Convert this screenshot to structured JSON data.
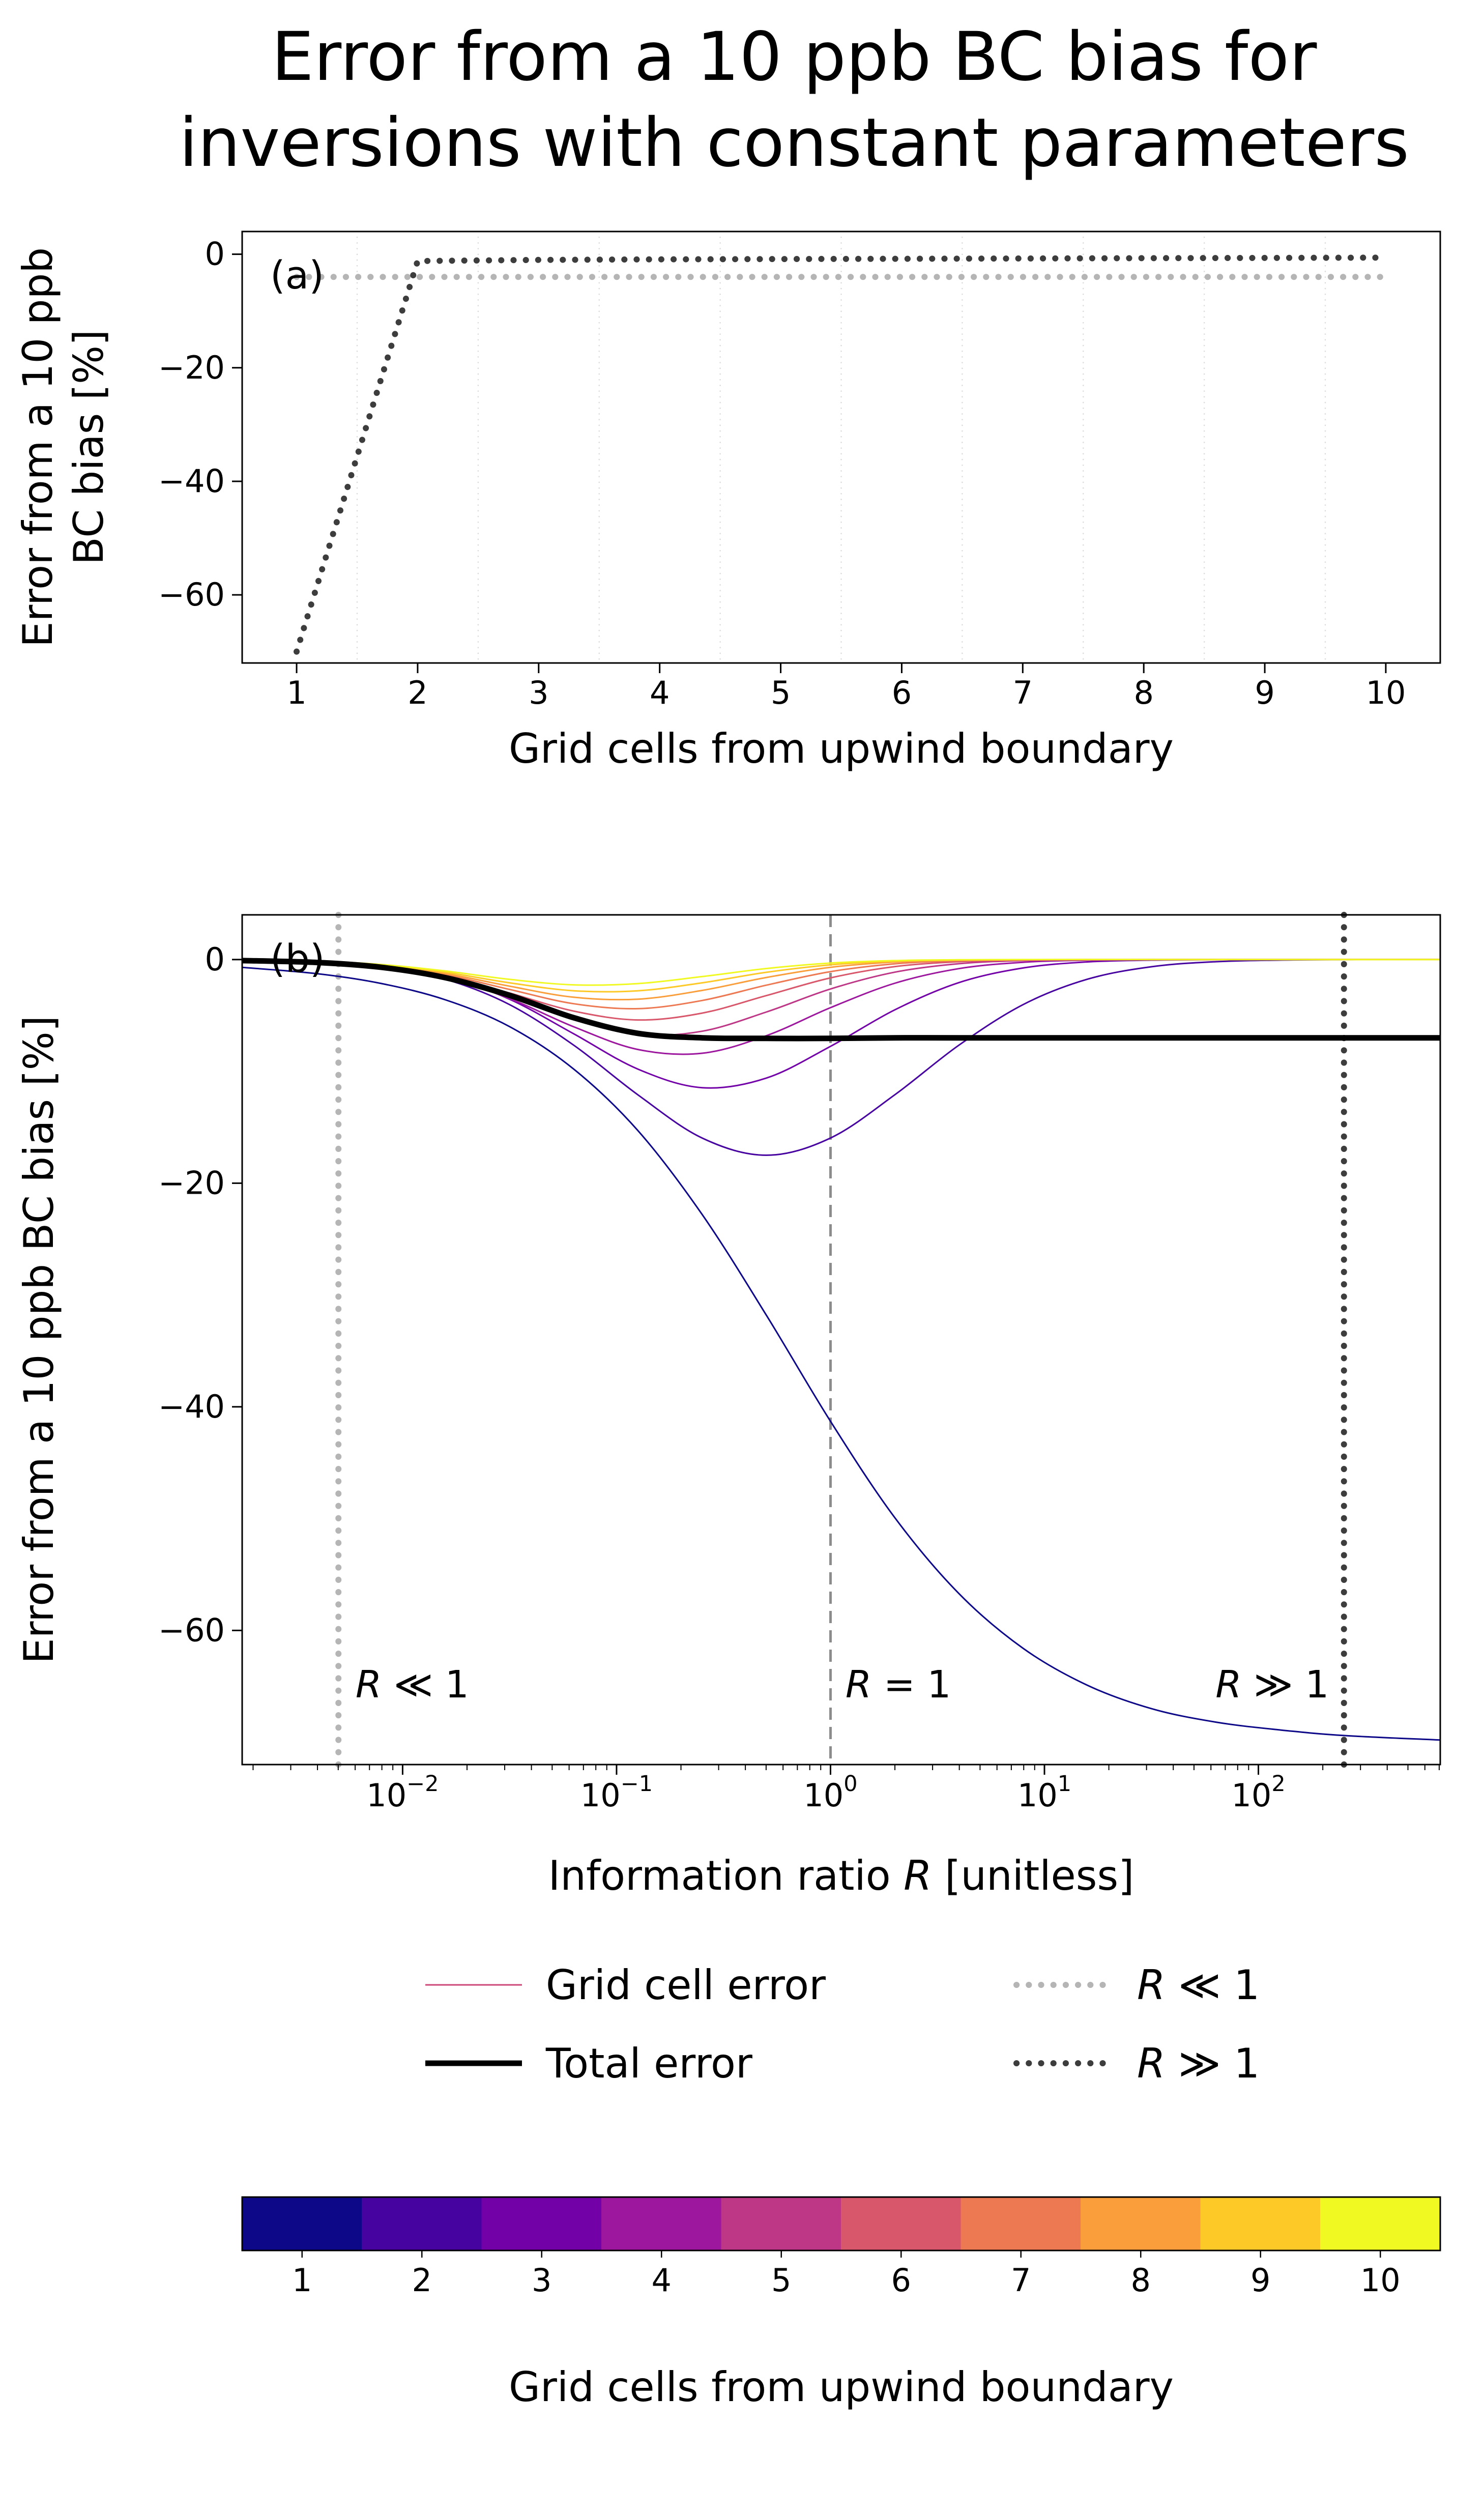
{
  "title": {
    "line1": "Error from a 10 ppb BC bias for",
    "line2": "inversions with constant parameters"
  },
  "panels": {
    "a": {
      "label": "(a)",
      "xlabel": "Grid cells from upwind boundary",
      "ylabel_line1": "Error from a 10 ppb",
      "ylabel_line2": "BC bias [%]"
    },
    "b": {
      "label": "(b)",
      "xlabel_pre": "Information ratio ",
      "xlabel_italic": "R",
      "xlabel_post": " [unitless]",
      "ylabel": "Error from a 10 ppb BC bias [%]"
    }
  },
  "legend": {
    "columns": [
      [
        {
          "label": "Grid cell error",
          "kind": "grid-cell",
          "color": "#cc4778",
          "style": "solid"
        },
        {
          "label": "Total error",
          "kind": "total",
          "color": "#000000",
          "style": "solid"
        }
      ],
      [
        {
          "label": "R ≪ 1",
          "kind": "limit",
          "color": "#b5b5b5",
          "style": "dotted"
        },
        {
          "label": "R ≫ 1",
          "kind": "limit",
          "color": "#3d3d3d",
          "style": "dotted"
        }
      ]
    ]
  },
  "colorbar": {
    "label": "Grid cells from upwind boundary",
    "tick_labels": [
      "1",
      "2",
      "3",
      "4",
      "5",
      "6",
      "7",
      "8",
      "9",
      "10"
    ],
    "colors": [
      "#0d0887",
      "#46039f",
      "#7201a8",
      "#9c179e",
      "#bd3786",
      "#d8576b",
      "#ed7953",
      "#fa9e3b",
      "#fdc926",
      "#f0f921"
    ]
  },
  "chart_data": [
    {
      "id": "panel_a",
      "type": "line",
      "xlabel": "Grid cells from upwind boundary",
      "ylabel": "Error from a 10 ppb BC bias [%]",
      "xlim": [
        0.55,
        10.45
      ],
      "ylim": [
        -72,
        4
      ],
      "xticks": [
        1,
        2,
        3,
        4,
        5,
        6,
        7,
        8,
        9,
        10
      ],
      "xtick_labels": [
        "1",
        "2",
        "3",
        "4",
        "5",
        "6",
        "7",
        "8",
        "9",
        "10"
      ],
      "yticks": [
        0,
        -20,
        -40,
        -60
      ],
      "ytick_labels": [
        "0",
        "−20",
        "−40",
        "−60"
      ],
      "minor_grid_x": [
        1.5,
        2.5,
        3.5,
        4.5,
        5.5,
        6.5,
        7.5,
        8.5,
        9.5
      ],
      "x": [
        1,
        2,
        3,
        4,
        5,
        6,
        7,
        8,
        9,
        10
      ],
      "series": [
        {
          "name": "R ≪ 1",
          "kind": "limit",
          "color": "#b5b5b5",
          "style": "dotted",
          "values": [
            -4,
            -4,
            -4,
            -4,
            -4,
            -4,
            -4,
            -4,
            -4,
            -4
          ]
        },
        {
          "name": "R ≫ 1",
          "kind": "limit",
          "color": "#3d3d3d",
          "style": "dotted",
          "values": [
            -70,
            -1.2,
            -1.0,
            -0.9,
            -0.85,
            -0.8,
            -0.75,
            -0.7,
            -0.65,
            -0.6
          ]
        }
      ]
    },
    {
      "id": "panel_b",
      "type": "line",
      "xscale": "log",
      "xlabel": "Information ratio R [unitless]",
      "ylabel": "Error from a 10 ppb BC bias [%]",
      "xlim_log10": [
        -2.75,
        2.85
      ],
      "ylim": [
        -72,
        4
      ],
      "xticks_log10": [
        -2,
        -1,
        0,
        1,
        2
      ],
      "xtick_exponents": [
        "−2",
        "−1",
        "0",
        "1",
        "2"
      ],
      "yticks": [
        0,
        -20,
        -40,
        -60
      ],
      "ytick_labels": [
        "0",
        "−20",
        "−40",
        "−60"
      ],
      "x_log10": [
        -2.75,
        -2.4,
        -2.1,
        -1.8,
        -1.5,
        -1.2,
        -0.9,
        -0.6,
        -0.3,
        0,
        0.3,
        0.6,
        0.9,
        1.2,
        1.5,
        1.8,
        2.1,
        2.4,
        2.85
      ],
      "series": [
        {
          "name": "1",
          "kind": "grid-cell",
          "color": "#0d0887",
          "style": "solid",
          "values": [
            -0.7,
            -1.26,
            -2.14,
            -3.6,
            -6.0,
            -9.8,
            -15.3,
            -22.8,
            -31.8,
            -41.3,
            -49.9,
            -56.7,
            -61.6,
            -64.9,
            -67.0,
            -68.2,
            -68.9,
            -69.4,
            -69.8
          ]
        },
        {
          "name": "2",
          "kind": "grid-cell",
          "color": "#46039f",
          "style": "solid",
          "values": [
            -0.04,
            -0.19,
            -0.64,
            -1.76,
            -4.03,
            -7.66,
            -12.1,
            -15.96,
            -17.5,
            -15.96,
            -12.1,
            -7.66,
            -4.03,
            -1.76,
            -0.64,
            -0.19,
            -0.05,
            -0.01,
            0
          ]
        },
        {
          "name": "3",
          "kind": "grid-cell",
          "color": "#7201a8",
          "style": "solid",
          "values": [
            -0.03,
            -0.13,
            -0.5,
            -1.5,
            -3.55,
            -6.64,
            -9.8,
            -11.46,
            -10.6,
            -7.76,
            -4.5,
            -2.06,
            -0.75,
            -0.21,
            -0.05,
            -0.01,
            0,
            0,
            0
          ]
        },
        {
          "name": "4",
          "kind": "grid-cell",
          "color": "#9c179e",
          "style": "solid",
          "values": [
            -0.03,
            -0.15,
            -0.56,
            -1.58,
            -3.49,
            -6.01,
            -8.04,
            -8.38,
            -6.81,
            -4.3,
            -2.12,
            -0.81,
            -0.24,
            -0.06,
            -0.01,
            0,
            0,
            0,
            0
          ]
        },
        {
          "name": "5",
          "kind": "grid-cell",
          "color": "#bd3786",
          "style": "solid",
          "values": [
            -0.03,
            -0.15,
            -0.55,
            -1.54,
            -3.28,
            -5.36,
            -6.7,
            -6.41,
            -4.69,
            -2.63,
            -1.13,
            -0.37,
            -0.09,
            -0.02,
            0,
            0,
            0,
            0,
            0
          ]
        },
        {
          "name": "6",
          "kind": "grid-cell",
          "color": "#d8576b",
          "style": "solid",
          "values": [
            -0.03,
            -0.15,
            -0.55,
            -1.47,
            -2.99,
            -4.61,
            -5.4,
            -4.79,
            -3.22,
            -1.64,
            -0.63,
            -0.19,
            -0.04,
            -0.01,
            0,
            0,
            0,
            0,
            0
          ]
        },
        {
          "name": "7",
          "kind": "grid-cell",
          "color": "#ed7953",
          "style": "solid",
          "values": [
            -0.03,
            -0.15,
            -0.51,
            -1.35,
            -2.67,
            -3.95,
            -4.39,
            -3.66,
            -2.29,
            -1.08,
            -0.38,
            -0.1,
            -0.02,
            0,
            0,
            0,
            0,
            0,
            0
          ]
        },
        {
          "name": "8",
          "kind": "grid-cell",
          "color": "#fa9e3b",
          "style": "solid",
          "values": [
            -0.03,
            -0.14,
            -0.49,
            -1.25,
            -2.38,
            -3.37,
            -3.54,
            -2.76,
            -1.6,
            -0.69,
            -0.22,
            -0.05,
            -0.01,
            0,
            0,
            0,
            0,
            0,
            0
          ]
        },
        {
          "name": "9",
          "kind": "grid-cell",
          "color": "#fdc926",
          "style": "solid",
          "values": [
            -0.03,
            -0.14,
            -0.47,
            -1.14,
            -2.08,
            -2.79,
            -2.79,
            -2.08,
            -1.14,
            -0.47,
            -0.14,
            -0.03,
            -0.01,
            0,
            0,
            0,
            0,
            0,
            0
          ]
        },
        {
          "name": "10",
          "kind": "grid-cell",
          "color": "#f0f921",
          "style": "solid",
          "values": [
            -0.03,
            -0.14,
            -0.44,
            -1.02,
            -1.77,
            -2.26,
            -2.15,
            -1.52,
            -0.8,
            -0.31,
            -0.09,
            -0.02,
            0,
            0,
            0,
            0,
            0,
            0,
            0
          ]
        },
        {
          "name": "Total error",
          "kind": "total",
          "color": "#000000",
          "style": "solid",
          "values": [
            -0.09,
            -0.26,
            -0.69,
            -1.62,
            -3.2,
            -5.2,
            -6.6,
            -7.0,
            -7.05,
            -7.05,
            -7.0,
            -7.0,
            -7.0,
            -7.0,
            -7.0,
            -7.0,
            -7.0,
            -7.0,
            -7.0
          ]
        }
      ],
      "vlines": [
        {
          "label": "R ≪ 1",
          "x_log10": -2.3,
          "color": "#b5b5b5",
          "style": "dotted"
        },
        {
          "label": "R = 1",
          "x_log10": 0,
          "color": "#8c8c8c",
          "style": "dashed"
        },
        {
          "label": "R ≫ 1",
          "x_log10": 2.4,
          "color": "#3d3d3d",
          "style": "dotted"
        }
      ],
      "annotations": [
        {
          "text": "R ≪ 1",
          "x_log10": -2.22,
          "y": -66,
          "anchor": "start"
        },
        {
          "text": "R = 1",
          "x_log10": 0.07,
          "y": -66,
          "anchor": "start"
        },
        {
          "text": "R ≫ 1",
          "x_log10": 2.33,
          "y": -66,
          "anchor": "end"
        }
      ]
    }
  ]
}
